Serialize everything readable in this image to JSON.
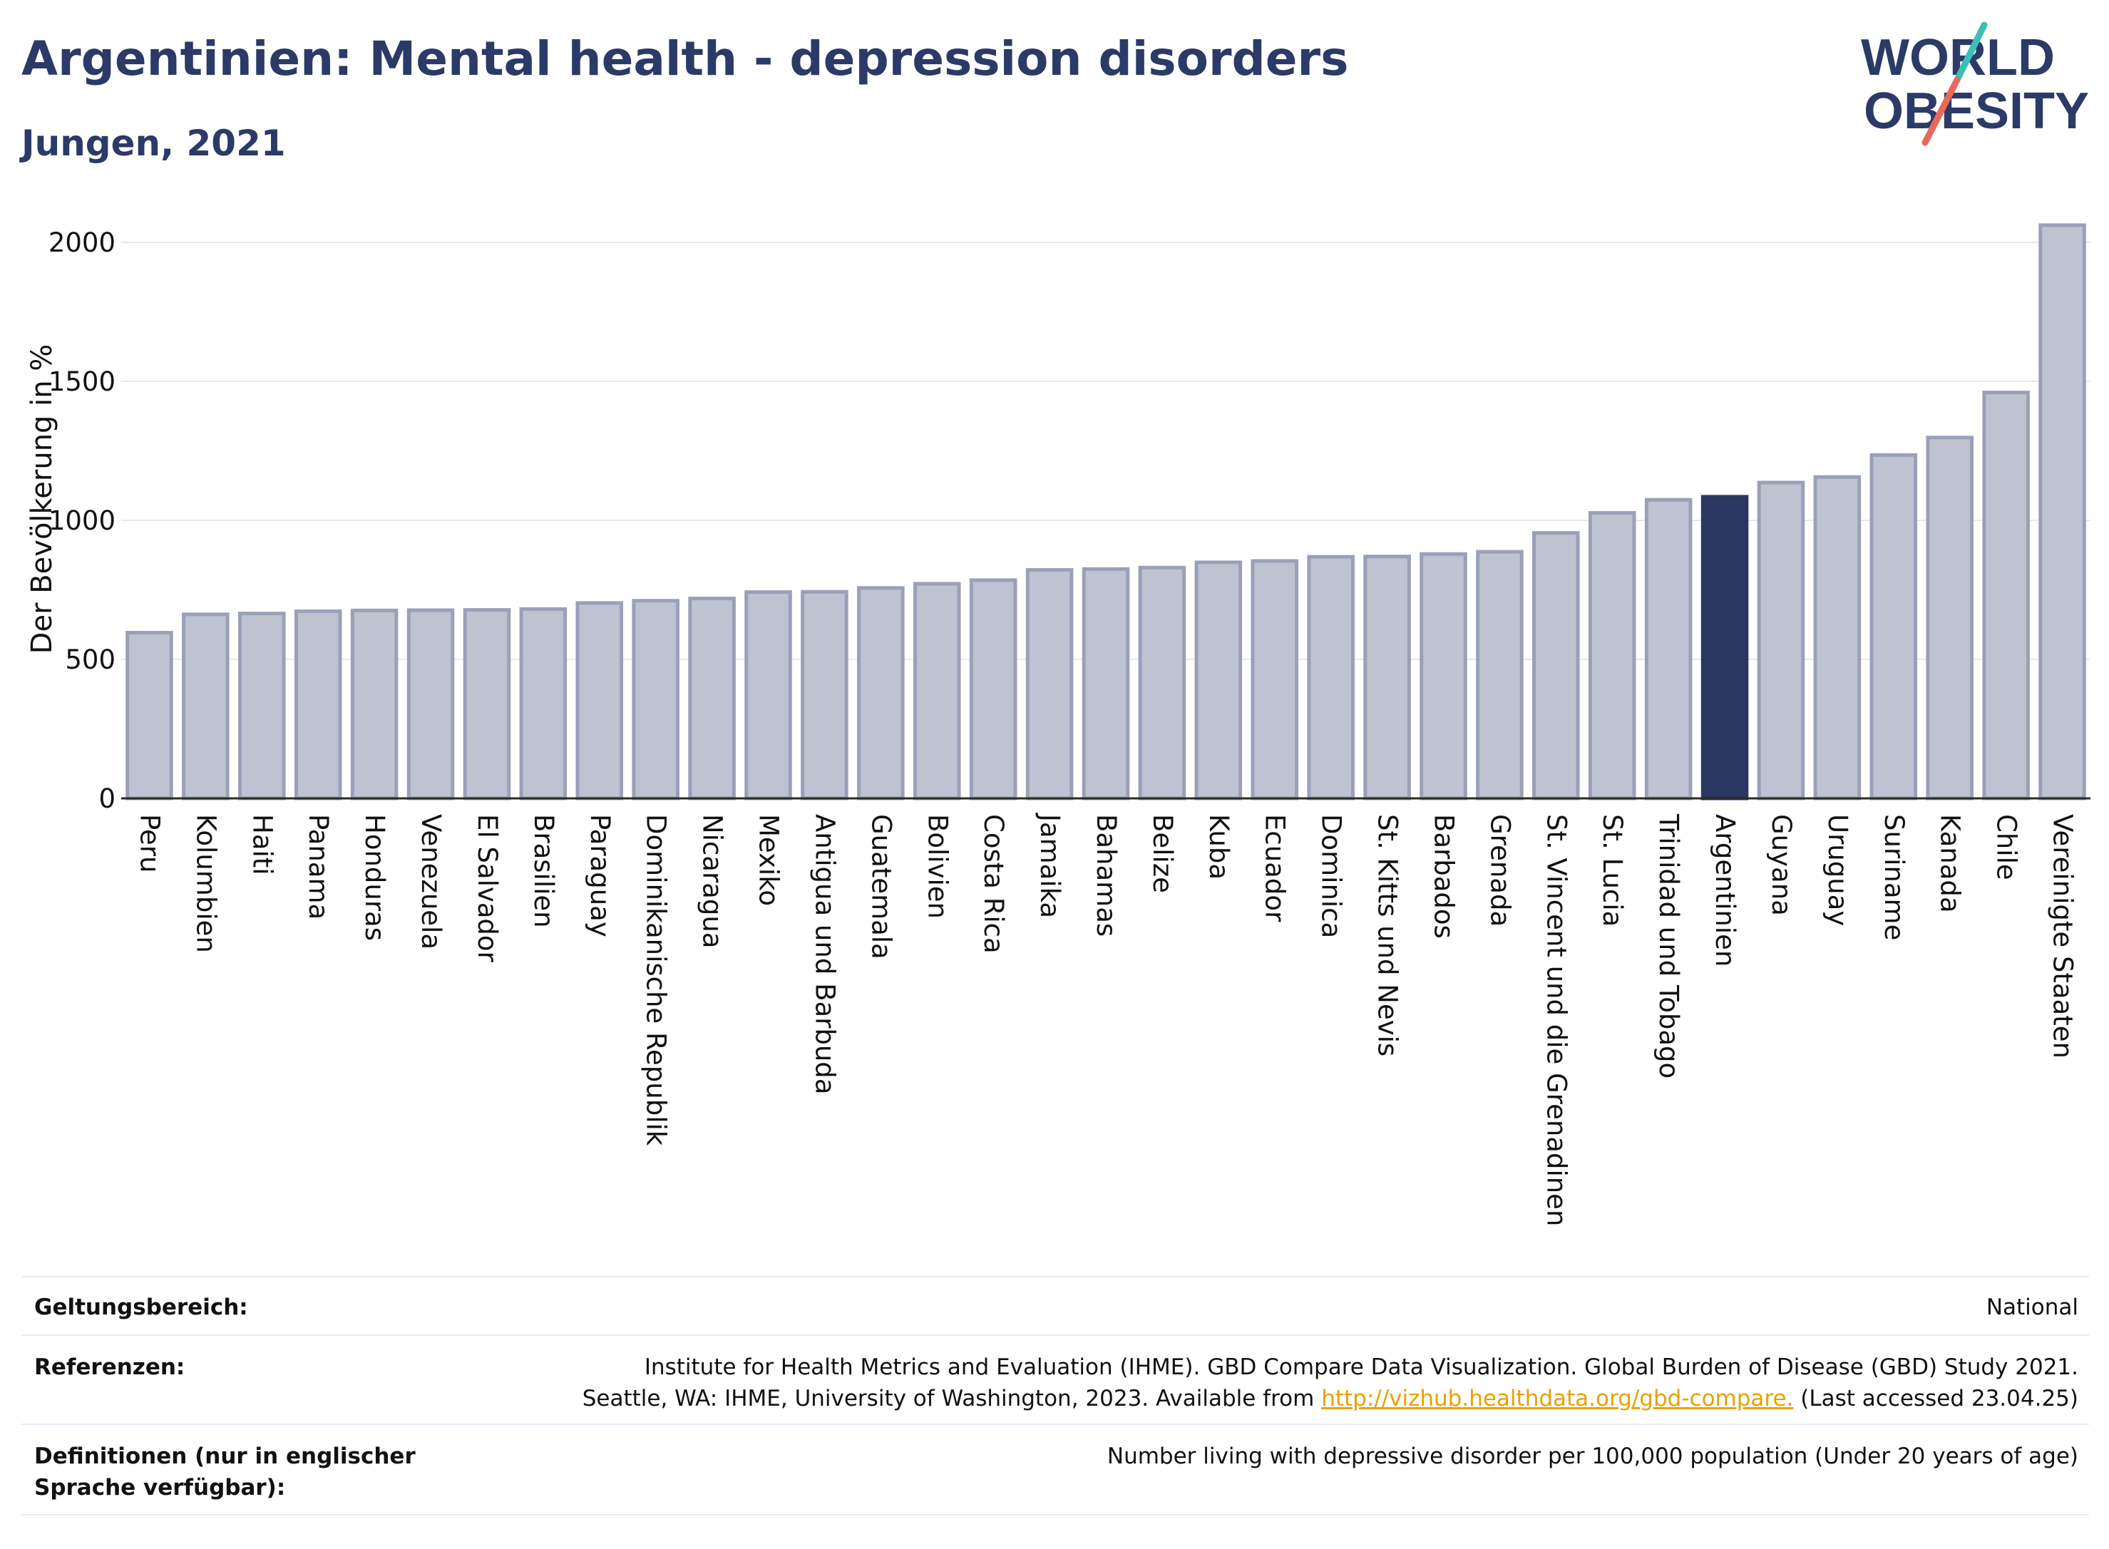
{
  "header": {
    "title": "Argentinien: Mental health - depression disorders",
    "subtitle": "Jungen, 2021"
  },
  "logo": {
    "line1": "WORLD",
    "line2": "OBESITY"
  },
  "colors": {
    "bar": "#bfc3d1",
    "bar_stroke": "#9aa0b8",
    "highlight": "#2b3661",
    "text_dark": "#2b3a67",
    "grid": "#e6e9f0",
    "link": "#e8a200"
  },
  "chart_data": {
    "type": "bar",
    "title": "Argentinien: Mental health - depression disorders",
    "subtitle": "Jungen, 2021",
    "xlabel": "",
    "ylabel": "Der Bevölkerung in %",
    "ylim": [
      0,
      2100
    ],
    "yticks": [
      0,
      500,
      1000,
      1500,
      2000
    ],
    "grid": true,
    "highlight": "Argentinien",
    "categories": [
      "Peru",
      "Kolumbien",
      "Haiti",
      "Panama",
      "Honduras",
      "Venezuela",
      "El Salvador",
      "Brasilien",
      "Paraguay",
      "Dominikanische Republik",
      "Nicaragua",
      "Mexiko",
      "Antigua und Barbuda",
      "Guatemala",
      "Bolivien",
      "Costa Rica",
      "Jamaika",
      "Bahamas",
      "Belize",
      "Kuba",
      "Ecuador",
      "Dominica",
      "St. Kitts und Nevis",
      "Barbados",
      "Grenada",
      "St. Vincent und die Grenadinen",
      "St. Lucia",
      "Trinidad und Tobago",
      "Argentinien",
      "Guyana",
      "Uruguay",
      "Suriname",
      "Kanada",
      "Chile",
      "Vereinigte Staaten"
    ],
    "values": [
      596,
      662,
      665,
      673,
      676,
      677,
      678,
      681,
      703,
      711,
      719,
      742,
      743,
      757,
      772,
      785,
      822,
      825,
      830,
      849,
      854,
      869,
      870,
      879,
      887,
      955,
      1027,
      1074,
      1085,
      1136,
      1156,
      1235,
      1298,
      1460,
      2062
    ]
  },
  "info": {
    "scope_label": "Geltungsbereich:",
    "scope_value": "National",
    "refs_label": "Referenzen:",
    "refs_line1": "Institute for Health Metrics and Evaluation (IHME). GBD Compare Data Visualization. Global Burden of Disease (GBD) Study 2021.",
    "refs_line2_pre": "Seattle, WA: IHME, University of Washington, 2023. Available from ",
    "refs_link": "http://vizhub.healthdata.org/gbd-compare.",
    "refs_line2_post": " (Last accessed 23.04.25)",
    "defs_label": "Definitionen (nur in englischer Sprache verfügbar):",
    "defs_value": "Number living with depressive disorder per 100,000 population (Under 20 years of age)"
  }
}
